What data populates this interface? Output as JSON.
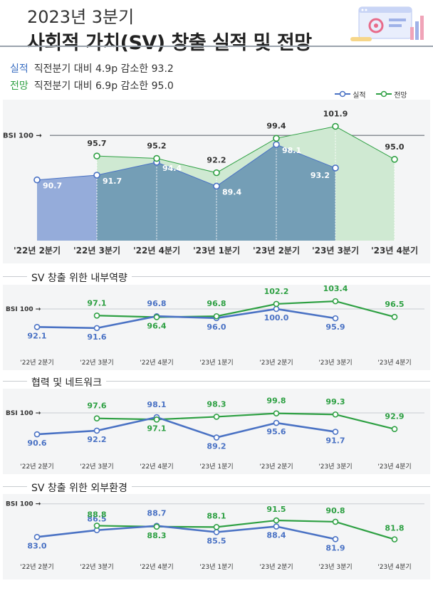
{
  "header": {
    "subtitle": "2023년 3분기",
    "title": "사회적 가치(SV) 창출 실적 및 전망",
    "actual_tag": "실적",
    "actual_text": "직전분기 대비 4.9p 감소한 93.2",
    "forecast_tag": "전망",
    "forecast_text": "직전분기 대비 6.9p 감소한 95.0"
  },
  "legend": {
    "actual": "실적",
    "forecast": "전망"
  },
  "colors": {
    "actual": "#4a72c4",
    "forecast": "#2ea043",
    "actual_fill": "#8fa8d8",
    "forecast_fill": "#cfe9d2",
    "overlap_fill": "#6e9bb0"
  },
  "decoration": "analytics-illustration-icon",
  "chart_data": [
    {
      "type": "area",
      "title": "",
      "baseline_label": "BSI 100 →",
      "baseline": 100,
      "categories": [
        "'22년 2분기",
        "'22년 3분기",
        "'22년 4분기",
        "'23년 1분기",
        "'23년 2분기",
        "'23년 3분기",
        "'23년 4분기"
      ],
      "series": [
        {
          "name": "실적",
          "values": [
            90.7,
            91.7,
            94.4,
            89.4,
            98.1,
            93.2,
            null
          ]
        },
        {
          "name": "전망",
          "values": [
            null,
            95.7,
            95.2,
            92.2,
            99.4,
            101.9,
            95.0
          ]
        }
      ],
      "ylim": [
        78,
        106
      ]
    },
    {
      "type": "line",
      "title": "SV 창출 위한 내부역량",
      "baseline_label": "BSI 100 →",
      "baseline": 100,
      "categories": [
        "'22년 2분기",
        "'22년 3분기",
        "'22년 4분기",
        "'23년 1분기",
        "'23년 2분기",
        "'23년 3분기",
        "'23년 4분기"
      ],
      "series": [
        {
          "name": "실적",
          "values": [
            92.1,
            91.6,
            96.8,
            96.0,
            100.0,
            95.9,
            null
          ]
        },
        {
          "name": "전망",
          "values": [
            null,
            97.1,
            96.4,
            96.8,
            102.2,
            103.4,
            96.5
          ]
        }
      ],
      "ylim": [
        80,
        110
      ]
    },
    {
      "type": "line",
      "title": "협력 및 네트워크",
      "baseline_label": "BSI 100 →",
      "baseline": 100,
      "categories": [
        "'22년 2분기",
        "'22년 3분기",
        "'22년 4분기",
        "'23년 1분기",
        "'23년 2분기",
        "'23년 3분기",
        "'23년 4분기"
      ],
      "series": [
        {
          "name": "실적",
          "values": [
            90.6,
            92.2,
            98.1,
            89.2,
            95.6,
            91.7,
            null
          ]
        },
        {
          "name": "전망",
          "values": [
            null,
            97.6,
            97.1,
            98.3,
            99.8,
            99.3,
            92.9
          ]
        }
      ],
      "ylim": [
        80,
        110
      ]
    },
    {
      "type": "line",
      "title": "SV 창출 위한 외부환경",
      "baseline_label": "BSI 100 →",
      "baseline": 100,
      "categories": [
        "'22년 2분기",
        "'22년 3분기",
        "'22년 4분기",
        "'23년 1분기",
        "'23년 2분기",
        "'23년 3분기",
        "'23년 4분기"
      ],
      "series": [
        {
          "name": "실적",
          "values": [
            83.0,
            86.5,
            88.7,
            85.5,
            88.4,
            81.9,
            null
          ]
        },
        {
          "name": "전망",
          "values": [
            null,
            88.8,
            88.3,
            88.1,
            91.5,
            90.8,
            81.8
          ]
        }
      ],
      "ylim": [
        70,
        105
      ]
    }
  ]
}
